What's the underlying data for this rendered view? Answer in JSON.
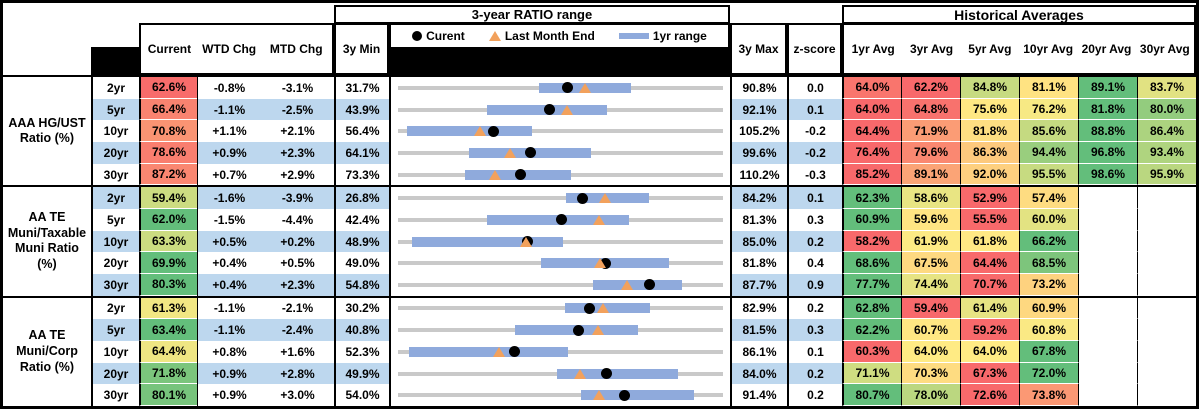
{
  "header": {
    "chart_title": "3-year RATIO range",
    "hist_title": "Historical Averages",
    "col_current": "Current",
    "col_wtd": "WTD Chg",
    "col_mtd": "MTD Chg",
    "col_3y_min": "3y Min",
    "col_3y_max": "3y Max",
    "col_zscore": "z-score",
    "avg_cols": [
      "1yr Avg",
      "3yr Avg",
      "5yr Avg",
      "10yr Avg",
      "20yr Avg",
      "30yr Avg"
    ],
    "legend": {
      "current": "Curent",
      "last_month": "Last Month End",
      "range": "1yr range"
    },
    "icons": [
      "current-dot-icon",
      "last-month-triangle-icon",
      "range-bar-icon"
    ]
  },
  "colors": {
    "band_blue": "#BDD7EE",
    "scale_red": "#F8696B",
    "scale_yellow": "#FFEB84",
    "scale_green": "#63BE7B",
    "bar_blue": "#8FAADC",
    "track_gray": "#C9C9C9",
    "marker_current": "#000000",
    "marker_last_month": "#F2A15C"
  },
  "chart_data": {
    "type": "table+range_bar",
    "note": "Each row is a 3-year ratio range chart: gray track spans 3y Min to 3y Max, blue bar is the 1yr range, black dot = Current, orange triangle = Last Month End (Current minus MTD Chg). Heatmap cell colors follow a red-yellow-green scale per row.",
    "groups": [
      {
        "label": "AAA HG/UST\nRatio (%)",
        "rows": [
          {
            "tenor": "2yr",
            "current": "62.6%",
            "wtd": "-0.8%",
            "mtd": "-3.1%",
            "min": "31.7%",
            "max": "90.8%",
            "z": "0.0",
            "bar1yr": [
              57.4,
              74.0
            ],
            "avgs": [
              "64.0%",
              "62.2%",
              "84.8%",
              "81.1%",
              "89.1%",
              "83.7%"
            ]
          },
          {
            "tenor": "5yr",
            "current": "66.4%",
            "wtd": "-1.1%",
            "mtd": "-2.5%",
            "min": "43.9%",
            "max": "92.1%",
            "z": "0.1",
            "bar1yr": [
              57.1,
              74.9
            ],
            "avgs": [
              "64.0%",
              "64.8%",
              "75.6%",
              "76.2%",
              "81.8%",
              "80.0%"
            ]
          },
          {
            "tenor": "10yr",
            "current": "70.8%",
            "wtd": "+1.1%",
            "mtd": "+2.1%",
            "min": "56.4%",
            "max": "105.2%",
            "z": "-0.2",
            "bar1yr": [
              57.8,
              76.5
            ],
            "avgs": [
              "64.4%",
              "71.9%",
              "81.8%",
              "85.6%",
              "88.8%",
              "86.4%"
            ]
          },
          {
            "tenor": "20yr",
            "current": "78.6%",
            "wtd": "+0.9%",
            "mtd": "+2.3%",
            "min": "64.1%",
            "max": "99.6%",
            "z": "-0.2",
            "bar1yr": [
              71.9,
              85.2
            ],
            "avgs": [
              "76.4%",
              "79.6%",
              "86.3%",
              "94.4%",
              "96.8%",
              "93.4%"
            ]
          },
          {
            "tenor": "30yr",
            "current": "87.2%",
            "wtd": "+0.7%",
            "mtd": "+2.9%",
            "min": "73.3%",
            "max": "110.2%",
            "z": "-0.3",
            "bar1yr": [
              80.9,
              92.9
            ],
            "avgs": [
              "85.2%",
              "89.1%",
              "92.0%",
              "95.5%",
              "98.6%",
              "95.9%"
            ]
          }
        ]
      },
      {
        "label": "AA TE\nMuni/Taxable\nMuni Ratio\n(%)",
        "rows": [
          {
            "tenor": "2yr",
            "current": "59.4%",
            "wtd": "-1.6%",
            "mtd": "-3.9%",
            "min": "26.8%",
            "max": "84.2%",
            "z": "0.1",
            "bar1yr": [
              56.4,
              71.1
            ],
            "avgs": [
              "62.3%",
              "58.6%",
              "52.9%",
              "57.4%",
              null,
              null
            ]
          },
          {
            "tenor": "5yr",
            "current": "62.0%",
            "wtd": "-1.5%",
            "mtd": "-4.4%",
            "min": "42.4%",
            "max": "81.3%",
            "z": "0.3",
            "bar1yr": [
              53.1,
              70.1
            ],
            "avgs": [
              "60.9%",
              "59.6%",
              "55.5%",
              "60.0%",
              null,
              null
            ]
          },
          {
            "tenor": "10yr",
            "current": "63.3%",
            "wtd": "+0.5%",
            "mtd": "+0.2%",
            "min": "48.9%",
            "max": "85.0%",
            "z": "0.2",
            "bar1yr": [
              50.4,
              67.2
            ],
            "avgs": [
              "58.2%",
              "61.9%",
              "61.8%",
              "66.2%",
              null,
              null
            ]
          },
          {
            "tenor": "20yr",
            "current": "69.9%",
            "wtd": "+0.4%",
            "mtd": "+0.5%",
            "min": "49.0%",
            "max": "81.8%",
            "z": "0.4",
            "bar1yr": [
              63.4,
              76.4
            ],
            "avgs": [
              "68.6%",
              "67.5%",
              "64.4%",
              "68.5%",
              null,
              null
            ]
          },
          {
            "tenor": "30yr",
            "current": "80.3%",
            "wtd": "+0.4%",
            "mtd": "+2.3%",
            "min": "54.8%",
            "max": "87.7%",
            "z": "0.9",
            "bar1yr": [
              74.5,
              83.6
            ],
            "avgs": [
              "77.7%",
              "74.4%",
              "70.7%",
              "73.2%",
              null,
              null
            ]
          }
        ]
      },
      {
        "label": "AA TE\nMuni/Corp\nRatio (%)",
        "rows": [
          {
            "tenor": "2yr",
            "current": "61.3%",
            "wtd": "-1.1%",
            "mtd": "-2.1%",
            "min": "30.2%",
            "max": "82.9%",
            "z": "0.2",
            "bar1yr": [
              57.3,
              71.0
            ],
            "avgs": [
              "62.8%",
              "59.4%",
              "61.4%",
              "60.9%",
              null,
              null
            ]
          },
          {
            "tenor": "5yr",
            "current": "63.4%",
            "wtd": "-1.1%",
            "mtd": "-2.4%",
            "min": "40.8%",
            "max": "81.5%",
            "z": "0.3",
            "bar1yr": [
              55.5,
              70.8
            ],
            "avgs": [
              "62.2%",
              "60.7%",
              "59.2%",
              "60.8%",
              null,
              null
            ]
          },
          {
            "tenor": "10yr",
            "current": "64.4%",
            "wtd": "+0.8%",
            "mtd": "+1.6%",
            "min": "52.3%",
            "max": "86.1%",
            "z": "0.1",
            "bar1yr": [
              53.4,
              70.0
            ],
            "avgs": [
              "60.3%",
              "64.0%",
              "64.0%",
              "67.8%",
              null,
              null
            ]
          },
          {
            "tenor": "20yr",
            "current": "71.8%",
            "wtd": "+0.9%",
            "mtd": "+2.8%",
            "min": "49.9%",
            "max": "84.0%",
            "z": "0.2",
            "bar1yr": [
              66.6,
              79.3
            ],
            "avgs": [
              "71.1%",
              "70.3%",
              "67.3%",
              "72.0%",
              null,
              null
            ]
          },
          {
            "tenor": "30yr",
            "current": "80.1%",
            "wtd": "+0.9%",
            "mtd": "+3.0%",
            "min": "54.0%",
            "max": "91.4%",
            "z": "0.2",
            "bar1yr": [
              75.1,
              88.1
            ],
            "avgs": [
              "80.7%",
              "78.0%",
              "72.6%",
              "73.8%",
              null,
              null
            ]
          }
        ]
      }
    ]
  }
}
